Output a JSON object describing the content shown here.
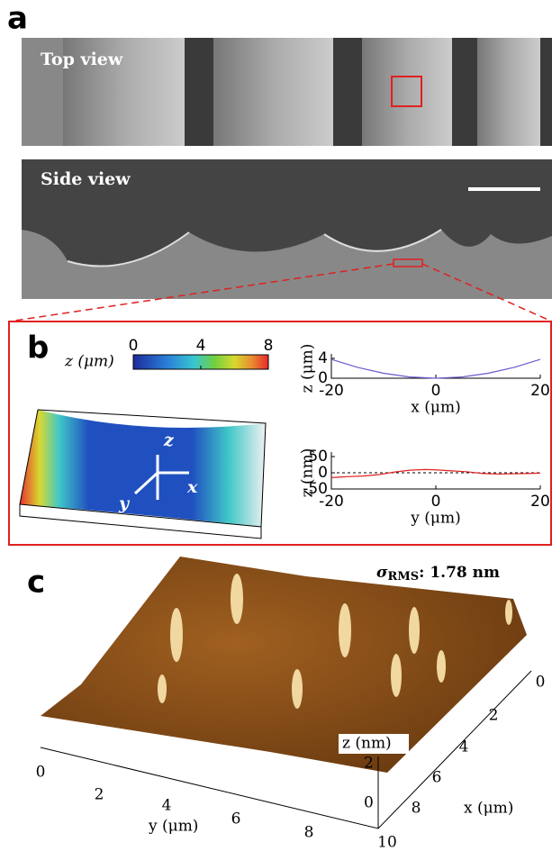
{
  "panels": {
    "a": {
      "label": "a",
      "top": "Top view",
      "side": "Side view"
    },
    "b": {
      "label": "b",
      "slab_axes": [
        "z",
        "x",
        "y"
      ],
      "colorbar": {
        "label": "z (μm)",
        "lim": [
          0,
          8
        ],
        "ticks": [
          0,
          4,
          8
        ]
      }
    },
    "c": {
      "label": "c",
      "sigma": [
        "σ",
        "RMS",
        ":  1.78  nm"
      ],
      "z_label": "z (nm)",
      "z_ticks": [
        2,
        0
      ],
      "x_label": "x (μm)",
      "x_ticks": [
        0,
        2,
        4,
        6,
        8,
        10
      ],
      "y_label": "y (μm)",
      "y_ticks": [
        0,
        2,
        4,
        6,
        8
      ]
    }
  },
  "chart_data": [
    {
      "type": "line",
      "xlabel": "x (μm)",
      "ylabel": "z (μm)",
      "color": "#6a5acd",
      "x": [
        -20,
        -15,
        -10,
        -5,
        0,
        5,
        10,
        15,
        20
      ],
      "values": [
        3.8,
        2.2,
        1.0,
        0.25,
        0,
        0.25,
        1.0,
        2.2,
        3.8
      ],
      "xlim": [
        -20,
        20
      ],
      "ylim": [
        0,
        4
      ],
      "xticks": [
        -20,
        0,
        20
      ],
      "yticks": [
        0,
        4
      ]
    },
    {
      "type": "line",
      "xlabel": "y (μm)",
      "ylabel": "z (nm)",
      "color": "#e02020",
      "x": [
        -20,
        -17,
        -14,
        -11,
        -8,
        -5,
        -2,
        0,
        3,
        6,
        9,
        12,
        15,
        18,
        20
      ],
      "values": [
        -15,
        -12,
        -10,
        -6,
        2,
        8,
        10,
        9,
        6,
        3,
        -2,
        -4,
        -3,
        -2,
        -1
      ],
      "xlim": [
        -20,
        20
      ],
      "ylim": [
        -50,
        50
      ],
      "xticks": [
        -20,
        0,
        20
      ],
      "yticks": [
        -50,
        0,
        50
      ]
    }
  ]
}
